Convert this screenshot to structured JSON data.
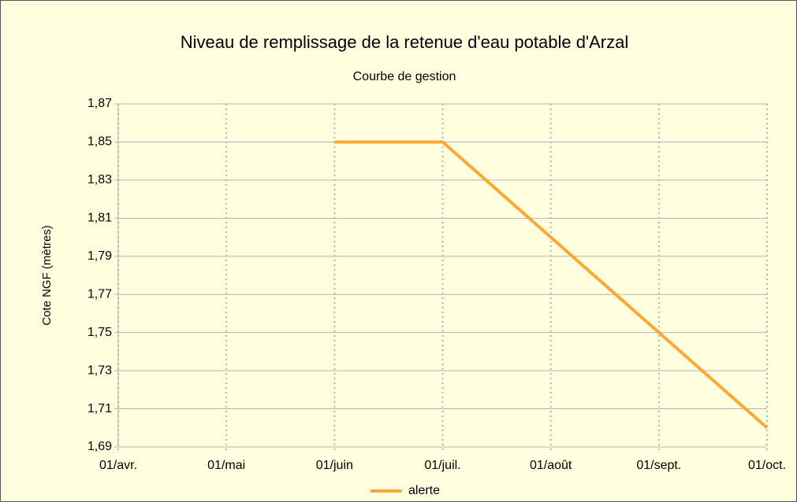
{
  "chart_data": {
    "type": "line",
    "title": "Niveau de remplissage de la retenue d'eau potable d'Arzal",
    "subtitle": "Courbe de gestion",
    "y_label": "Cote NGF (mètres)",
    "categories": [
      "01/avr.",
      "01/mai",
      "01/juin",
      "01/juil.",
      "01/août",
      "01/sept.",
      "01/oct."
    ],
    "series": [
      {
        "name": "alerte",
        "color": "#ffa733",
        "values": [
          null,
          null,
          1.85,
          1.85,
          1.8,
          1.75,
          1.7
        ]
      }
    ],
    "ylim": [
      1.69,
      1.87
    ],
    "yticks": [
      {
        "value": 1.69,
        "label": "1,69"
      },
      {
        "value": 1.71,
        "label": "1,71"
      },
      {
        "value": 1.73,
        "label": "1,73"
      },
      {
        "value": 1.75,
        "label": "1,75"
      },
      {
        "value": 1.77,
        "label": "1,77"
      },
      {
        "value": 1.79,
        "label": "1,79"
      },
      {
        "value": 1.81,
        "label": "1,81"
      },
      {
        "value": 1.83,
        "label": "1,83"
      },
      {
        "value": 1.85,
        "label": "1,85"
      },
      {
        "value": 1.87,
        "label": "1,87"
      }
    ],
    "grid": true,
    "legend": "bottom"
  }
}
